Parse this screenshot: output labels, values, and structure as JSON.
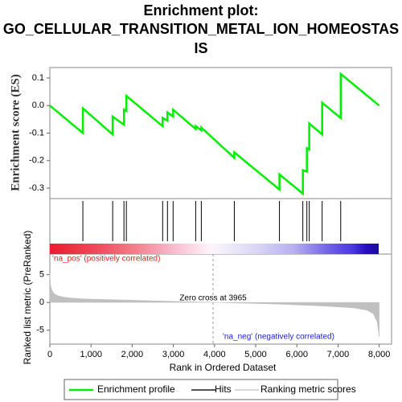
{
  "chart_data": [
    {
      "type": "line",
      "title": [
        "Enrichment plot:",
        "GO_CELLULAR_TRANSITION_METAL_ION_HOMEOSTAS",
        "IS"
      ],
      "ylabel": "Enrichment score (ES)",
      "xlim": [
        0,
        8300
      ],
      "ylim": [
        -0.338,
        0.138
      ],
      "yticks": [
        0.1,
        {
          "value": 0,
          "label": "0.0"
        },
        -0.1,
        -0.2,
        -0.3
      ],
      "series": [
        {
          "name": "Enrichment profile",
          "color": "#00ee00",
          "x": [
            0,
            802,
            802,
            1526,
            1526,
            1800,
            1800,
            1859,
            1859,
            2740,
            2740,
            2857,
            2857,
            2994,
            2994,
            3542,
            3542,
            3679,
            3679,
            4481,
            4481,
            5577,
            5577,
            6145,
            6145,
            6243,
            6243,
            6301,
            6301,
            6614,
            6614,
            7065,
            7065,
            8000
          ],
          "values": [
            0,
            -0.1,
            -0.01,
            -0.105,
            -0.04,
            -0.07,
            -0.015,
            -0.02,
            0.035,
            -0.075,
            -0.045,
            -0.055,
            -0.025,
            -0.04,
            -0.015,
            -0.085,
            -0.075,
            -0.09,
            -0.08,
            -0.19,
            -0.17,
            -0.305,
            -0.25,
            -0.32,
            -0.235,
            -0.24,
            -0.155,
            -0.16,
            -0.065,
            -0.105,
            0.01,
            -0.045,
            0.115,
            0.0
          ]
        }
      ]
    },
    {
      "type": "rug",
      "xlim": [
        0,
        8300
      ],
      "series": [
        {
          "name": "Hits",
          "color": "#000000",
          "x": [
            802,
            1526,
            1800,
            1859,
            2740,
            2857,
            2994,
            3542,
            3679,
            4481,
            5577,
            6145,
            6243,
            6301,
            6614,
            7065
          ]
        }
      ]
    },
    {
      "type": "area",
      "xlabel": "Rank in Ordered Dataset",
      "ylabel": "Ranked list metric (PreRanked)",
      "xlim": [
        0,
        8300
      ],
      "ylim": [
        -7.5,
        8.7
      ],
      "xticks": [
        0,
        {
          "value": 1000,
          "label": "1,000"
        },
        {
          "value": 2000,
          "label": "2,000"
        },
        {
          "value": 3000,
          "label": "3,000"
        },
        {
          "value": 4000,
          "label": "4,000"
        },
        {
          "value": 5000,
          "label": "5,000"
        },
        {
          "value": 6000,
          "label": "6,000"
        },
        {
          "value": 7000,
          "label": "7,000"
        },
        {
          "value": 8000,
          "label": "8,000"
        }
      ],
      "yticks": [
        5,
        0,
        -5
      ],
      "zero_cross": 3965,
      "annotations": [
        "'na_pos' (positively correlated)",
        "Zero cross at 3965",
        "'na_neg' (negatively correlated)"
      ],
      "series": [
        {
          "name": "Ranking metric scores",
          "color": "#c0c0c0",
          "x": [
            0,
            20,
            50,
            100,
            200,
            300,
            500,
            800,
            1000,
            1500,
            2000,
            2500,
            3000,
            3500,
            3965,
            4500,
            5000,
            5500,
            6000,
            6500,
            7000,
            7400,
            7700,
            7850,
            7950,
            8000
          ],
          "values": [
            5.2,
            3.0,
            2.2,
            1.6,
            1.2,
            1.0,
            0.8,
            0.65,
            0.6,
            0.5,
            0.4,
            0.3,
            0.2,
            0.1,
            0,
            -0.1,
            -0.2,
            -0.3,
            -0.45,
            -0.6,
            -0.8,
            -1.0,
            -1.4,
            -2.0,
            -3.5,
            -6.2
          ]
        }
      ]
    }
  ]
}
